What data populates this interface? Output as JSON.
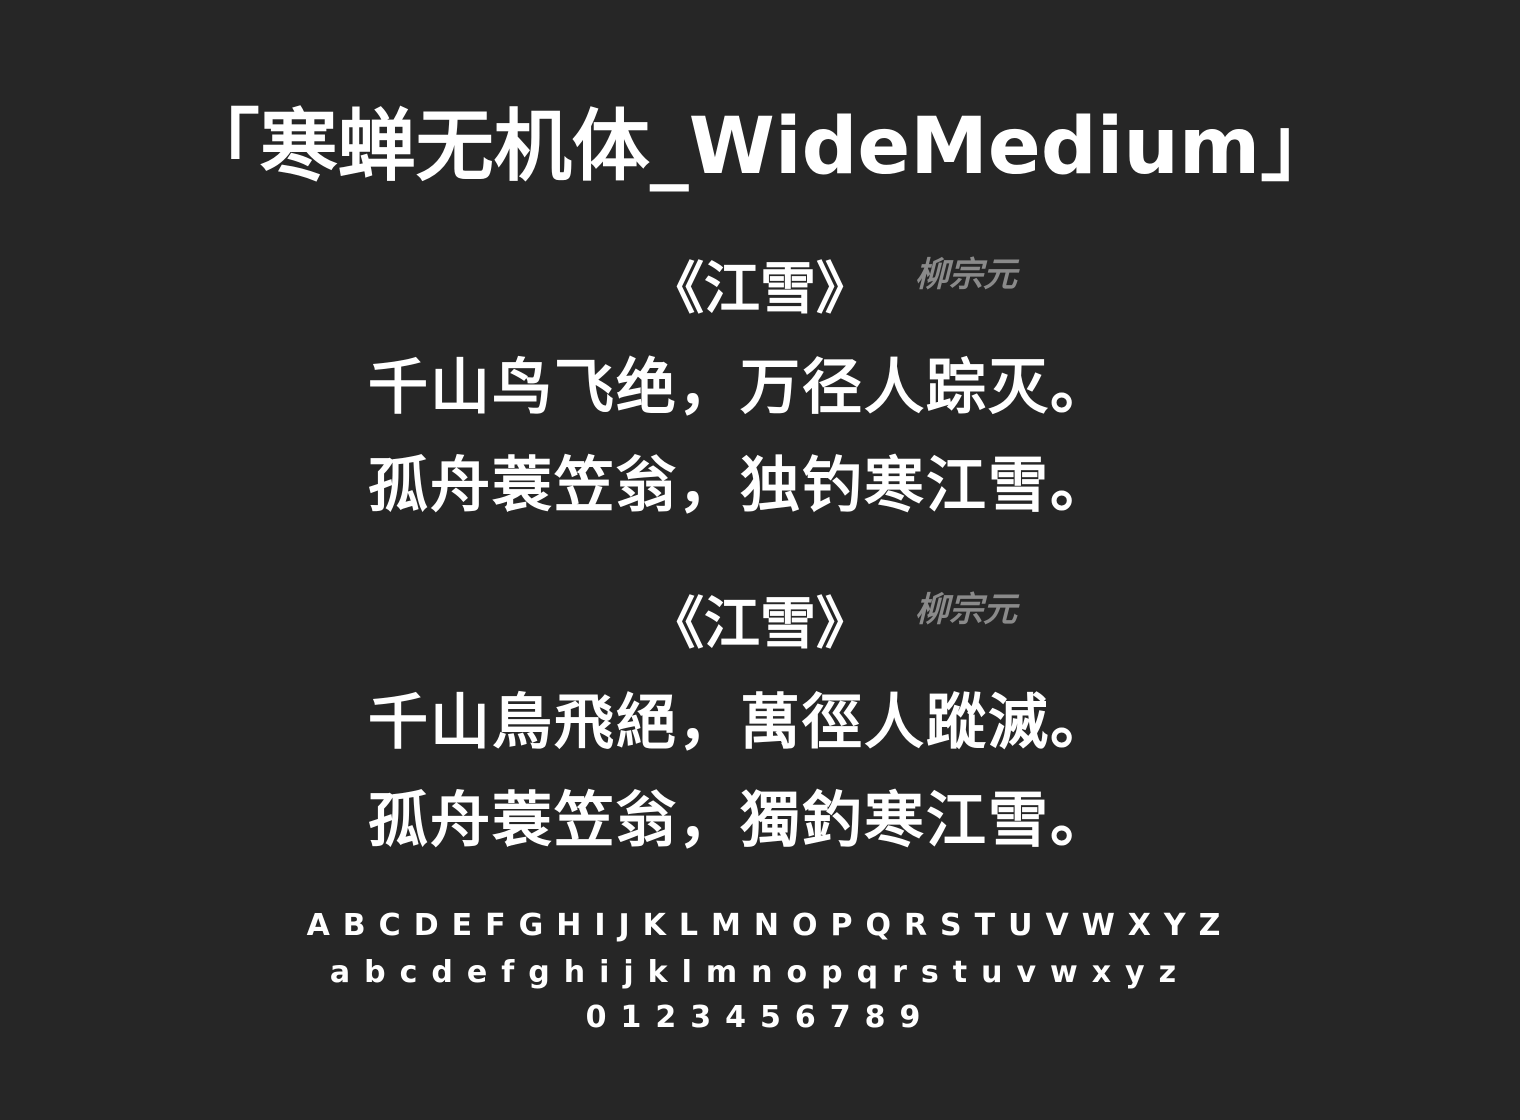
{
  "title": "「寒蝉无机体_WideMedium」",
  "poems": [
    {
      "title": "《江雪》",
      "author": "柳宗元",
      "lines": [
        "千山鸟飞绝，万径人踪灭。",
        "孤舟蓑笠翁，独钓寒江雪。"
      ]
    },
    {
      "title": "《江雪》",
      "author": "柳宗元",
      "lines": [
        "千山鳥飛絕，萬徑人蹤滅。",
        "孤舟蓑笠翁，獨釣寒江雪。"
      ]
    }
  ],
  "alphabet": {
    "upper": "ABCDEFGHIJKLMNOPQRSTUVWXYZ",
    "lower": "abcdefghijklmnopqrstuvwxyz",
    "digits": "0123456789"
  },
  "colors": {
    "background": "#262626",
    "text": "#ffffff",
    "author": "#8a8a8a"
  }
}
